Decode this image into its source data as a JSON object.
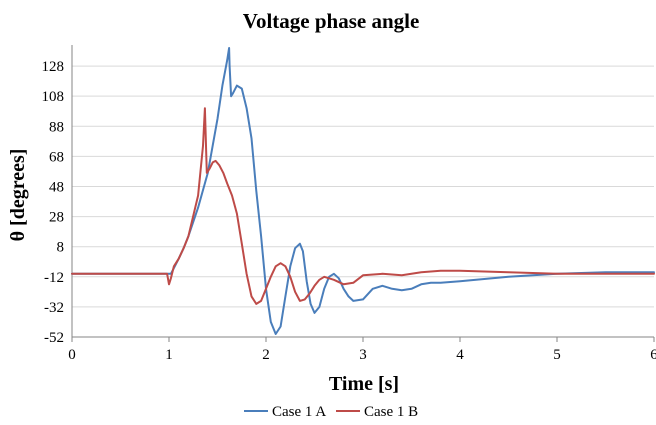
{
  "chart_data": {
    "type": "line",
    "title": "Voltage phase angle",
    "xlabel": "Time [s]",
    "ylabel": "θ [degrees]",
    "xlim": [
      0,
      6
    ],
    "ylim": [
      -52,
      142
    ],
    "xticks": [
      "0",
      "1",
      "2",
      "3",
      "4",
      "5",
      "6"
    ],
    "yticks": [
      "128",
      "108",
      "88",
      "68",
      "48",
      "28",
      "8",
      "-12",
      "-32",
      "-52"
    ],
    "grid": true,
    "legend_position": "bottom",
    "series": [
      {
        "name": "Case 1 A",
        "color": "#4a7ebb",
        "x": [
          0,
          0.5,
          0.98,
          1.02,
          1.06,
          1.1,
          1.15,
          1.2,
          1.3,
          1.4,
          1.5,
          1.55,
          1.6,
          1.62,
          1.625,
          1.64,
          1.66,
          1.7,
          1.75,
          1.8,
          1.85,
          1.9,
          1.95,
          2.0,
          2.05,
          2.1,
          2.15,
          2.2,
          2.25,
          2.3,
          2.35,
          2.38,
          2.42,
          2.46,
          2.5,
          2.55,
          2.6,
          2.65,
          2.7,
          2.75,
          2.8,
          2.85,
          2.9,
          3.0,
          3.1,
          3.2,
          3.3,
          3.4,
          3.5,
          3.6,
          3.7,
          3.8,
          4.0,
          4.5,
          5.0,
          5.5,
          6.0
        ],
        "y": [
          -10,
          -10,
          -10,
          -10,
          -5,
          0,
          7,
          15,
          34,
          57,
          93,
          115,
          132,
          140,
          128,
          108,
          110,
          115,
          113,
          100,
          80,
          45,
          15,
          -20,
          -42,
          -50,
          -45,
          -25,
          -5,
          7,
          10,
          5,
          -15,
          -30,
          -36,
          -32,
          -20,
          -12,
          -10,
          -13,
          -20,
          -25,
          -28,
          -27,
          -20,
          -18,
          -20,
          -21,
          -20,
          -17,
          -16,
          -16,
          -15,
          -12,
          -10,
          -9,
          -9
        ]
      },
      {
        "name": "Case 1 B",
        "color": "#be4b48",
        "x": [
          0,
          0.5,
          0.98,
          1.0,
          1.02,
          1.05,
          1.1,
          1.15,
          1.2,
          1.3,
          1.35,
          1.37,
          1.39,
          1.42,
          1.45,
          1.48,
          1.52,
          1.56,
          1.6,
          1.65,
          1.7,
          1.75,
          1.8,
          1.85,
          1.9,
          1.95,
          2.0,
          2.05,
          2.1,
          2.15,
          2.2,
          2.25,
          2.3,
          2.35,
          2.4,
          2.45,
          2.5,
          2.55,
          2.6,
          2.7,
          2.8,
          2.9,
          3.0,
          3.2,
          3.4,
          3.6,
          3.8,
          4.0,
          4.5,
          5.0,
          5.5,
          6.0
        ],
        "y": [
          -10,
          -10,
          -10,
          -17,
          -13,
          -5,
          0,
          7,
          15,
          42,
          75,
          100,
          57,
          60,
          64,
          65,
          62,
          57,
          50,
          42,
          30,
          10,
          -10,
          -25,
          -30,
          -28,
          -20,
          -12,
          -5,
          -3,
          -5,
          -12,
          -22,
          -28,
          -27,
          -23,
          -18,
          -14,
          -12,
          -14,
          -17,
          -16,
          -11,
          -10,
          -11,
          -9,
          -8,
          -8,
          -9,
          -10,
          -10,
          -10
        ]
      }
    ]
  }
}
